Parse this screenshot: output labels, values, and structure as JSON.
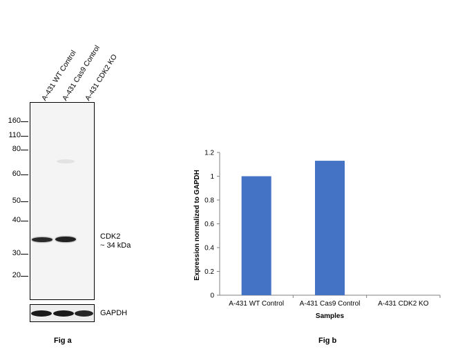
{
  "fig_a": {
    "caption": "Fig a",
    "lane_labels": [
      "A-431 WT Control",
      "A-431 Cas9 Control",
      "A-431 CDK2 KO"
    ],
    "mw_markers": [
      "160",
      "110",
      "80",
      "60",
      "50",
      "40",
      "30",
      "20"
    ],
    "target_label": "CDK2",
    "target_size": "~ 34 kDa",
    "loading_label": "GAPDH"
  },
  "fig_b": {
    "caption": "Fig b"
  },
  "chart_data": {
    "type": "bar",
    "categories": [
      "A-431 WT Control",
      "A-431 Cas9 Control",
      "A-431 CDK2 KO"
    ],
    "values": [
      1.0,
      1.13,
      0.0
    ],
    "xlabel": "Samples",
    "ylabel": "Expression normalized to GAPDH",
    "ylim": [
      0,
      1.2
    ],
    "yticks": [
      "0",
      "0.2",
      "0.4",
      "0.6",
      "0.8",
      "1",
      "1.2"
    ],
    "grid": false,
    "bar_color": "#4472c4"
  }
}
